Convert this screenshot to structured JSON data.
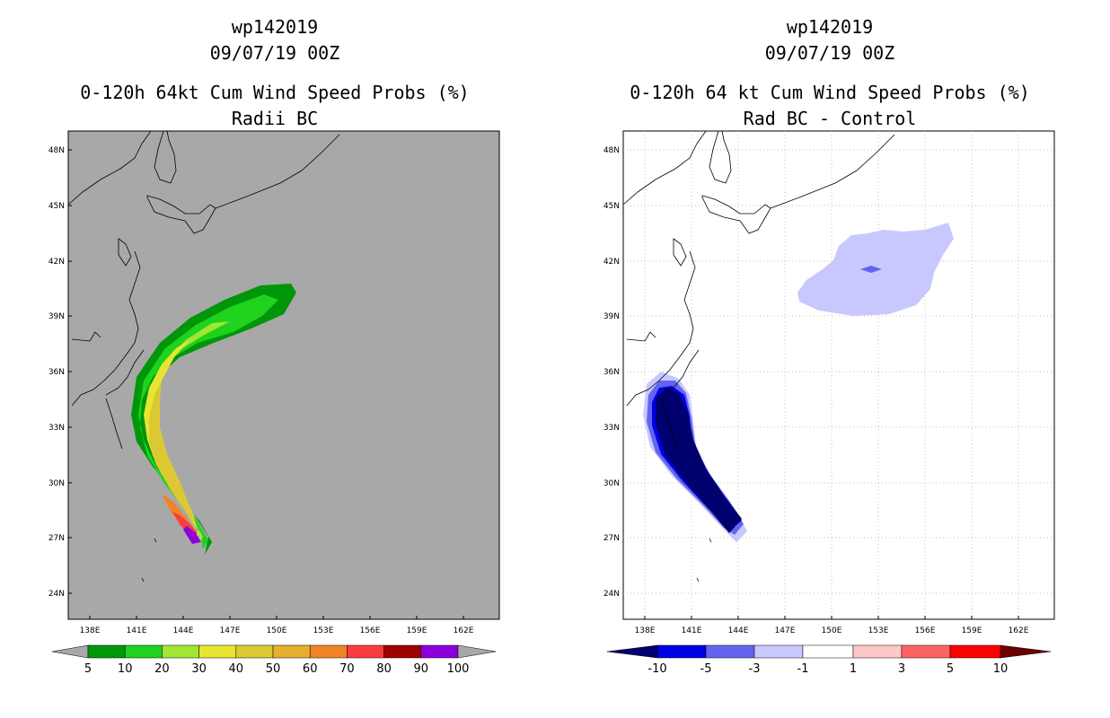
{
  "chart_data": [
    {
      "type": "heatmap",
      "storm": "wp142019",
      "date": "09/07/19 00Z",
      "title": "0-120h 64kt Cum Wind Speed Probs (%)",
      "subtitle": "Radii BC",
      "x_ticks": [
        "138E",
        "141E",
        "144E",
        "147E",
        "150E",
        "153E",
        "156E",
        "159E",
        "162E"
      ],
      "y_ticks": [
        "48N",
        "45N",
        "42N",
        "39N",
        "36N",
        "33N",
        "30N",
        "27N",
        "24N"
      ],
      "xlim": [
        136.0,
        163.0
      ],
      "ylim": [
        22.5,
        49.0
      ],
      "background": "#a8a8a8",
      "colorbar": {
        "labels": [
          "5",
          "10",
          "20",
          "30",
          "40",
          "50",
          "60",
          "70",
          "80",
          "90",
          "100"
        ],
        "colors": [
          "#00960a",
          "#1ed21e",
          "#a0e632",
          "#e6e632",
          "#dcc832",
          "#e6af2d",
          "#f08228",
          "#fa3c3c",
          "#a00000",
          "#8c00dc"
        ],
        "extend_colors": [
          "#a8a8a8",
          "#a8a8a8"
        ]
      }
    },
    {
      "type": "heatmap",
      "storm": "wp142019",
      "date": "09/07/19 00Z",
      "title": "0-120h 64 kt Cum Wind Speed Probs (%)",
      "subtitle": "Rad BC - Control",
      "x_ticks": [
        "138E",
        "141E",
        "144E",
        "147E",
        "150E",
        "153E",
        "156E",
        "159E",
        "162E"
      ],
      "y_ticks": [
        "48N",
        "45N",
        "42N",
        "39N",
        "36N",
        "33N",
        "30N",
        "27N",
        "24N"
      ],
      "xlim": [
        136.0,
        163.0
      ],
      "ylim": [
        22.5,
        49.0
      ],
      "background": "#ffffff",
      "colorbar": {
        "labels": [
          "-10",
          "-5",
          "-3",
          "-1",
          "1",
          "3",
          "5",
          "10"
        ],
        "colors": [
          "#0000e6",
          "#6464f0",
          "#c8c8ff",
          "#ffffff",
          "#ffc8c8",
          "#ff6464",
          "#ff0000"
        ],
        "extend_colors": [
          "#00006e",
          "#6e0000"
        ]
      }
    }
  ]
}
